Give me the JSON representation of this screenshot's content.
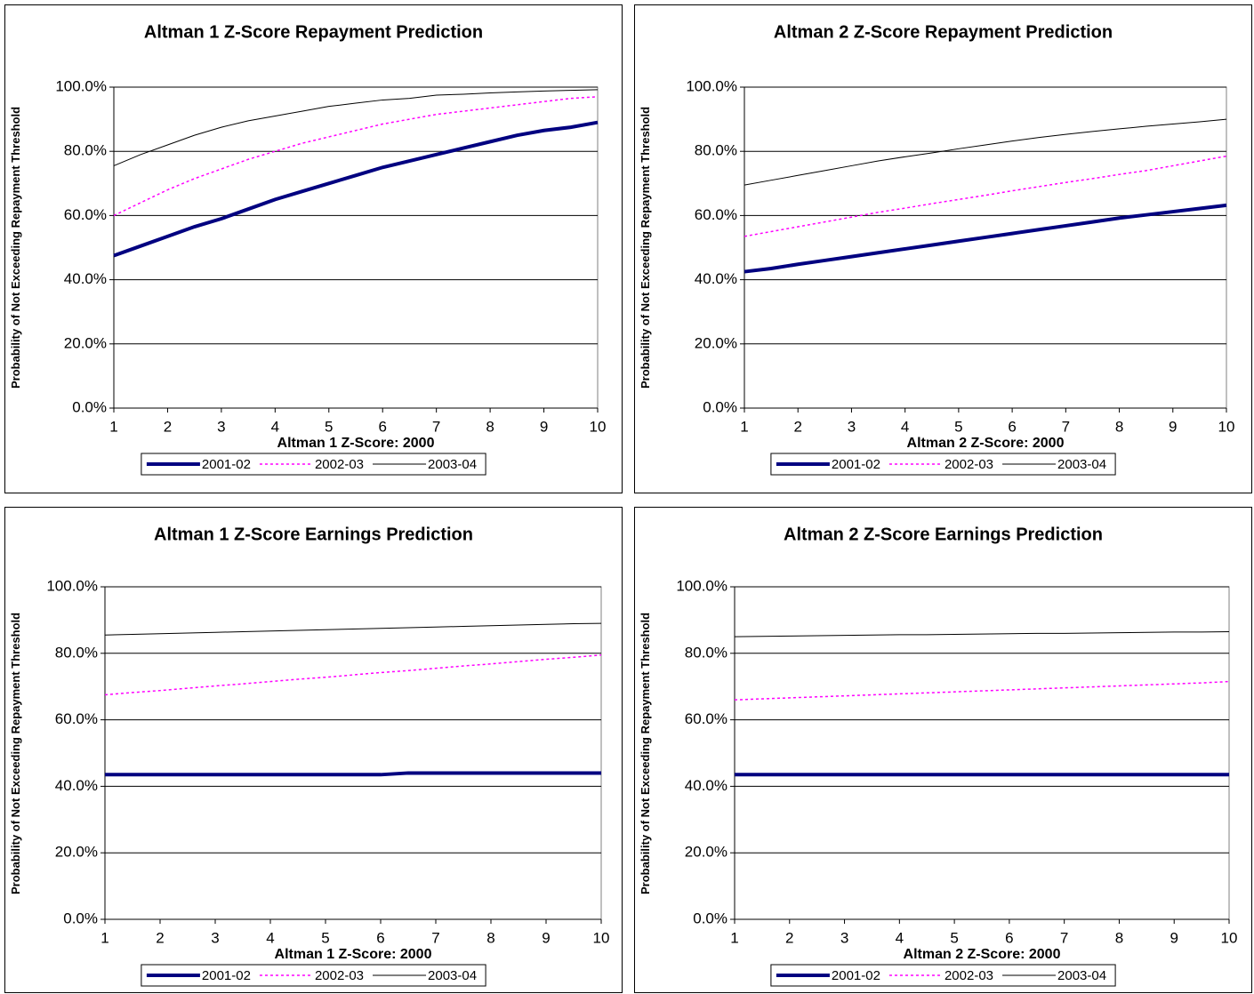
{
  "chart_data": [
    {
      "type": "line",
      "title": "Altman 1 Z-Score Repayment Prediction",
      "x_label": "Altman 1 Z-Score: 2000",
      "y_label": "Probability of Not Exceeding Repayment Threshold",
      "x": [
        1,
        1.5,
        2,
        2.5,
        3,
        3.5,
        4,
        4.5,
        5,
        5.5,
        6,
        6.5,
        7,
        7.5,
        8,
        8.5,
        9,
        9.5,
        10
      ],
      "xlim": [
        1,
        10
      ],
      "xticks": [
        1,
        2,
        3,
        4,
        5,
        6,
        7,
        8,
        9,
        10
      ],
      "ylim": [
        0,
        100
      ],
      "yticks": [
        {
          "value": 0,
          "label": "0.0%"
        },
        {
          "value": 20,
          "label": "20.0%"
        },
        {
          "value": 40,
          "label": "40.0%"
        },
        {
          "value": 60,
          "label": "60.0%"
        },
        {
          "value": 80,
          "label": "80.0%"
        },
        {
          "value": 100,
          "label": "100.0%"
        }
      ],
      "grid": true,
      "series": [
        {
          "name": "2001-02",
          "color": "#000080",
          "line_width": 4,
          "dash": "solid",
          "values": [
            47.5,
            50.5,
            53.5,
            56.5,
            59,
            62,
            65,
            67.5,
            70,
            72.5,
            75,
            77,
            79,
            81,
            83,
            85,
            86.5,
            87.5,
            89
          ]
        },
        {
          "name": "2002-03",
          "color": "#ff00ff",
          "line_width": 1.5,
          "dash": "dotted",
          "values": [
            60,
            64,
            68,
            71.5,
            74.5,
            77.5,
            80,
            82.5,
            84.5,
            86.5,
            88.5,
            90,
            91.5,
            92.5,
            93.5,
            94.5,
            95.5,
            96.5,
            97
          ]
        },
        {
          "name": "2003-04",
          "color": "#000000",
          "line_width": 1,
          "dash": "solid",
          "values": [
            75.5,
            79,
            82,
            85,
            87.5,
            89.5,
            91,
            92.5,
            94,
            95,
            96,
            96.5,
            97.5,
            97.8,
            98.2,
            98.5,
            98.8,
            99,
            99.2
          ]
        }
      ]
    },
    {
      "type": "line",
      "title": "Altman 2 Z-Score Repayment Prediction",
      "x_label": "Altman 2 Z-Score: 2000",
      "y_label": "Probability of Not Exceeding Repayment Threshold",
      "x": [
        1,
        1.5,
        2,
        2.5,
        3,
        3.5,
        4,
        4.5,
        5,
        5.5,
        6,
        6.5,
        7,
        7.5,
        8,
        8.5,
        9,
        9.5,
        10
      ],
      "xlim": [
        1,
        10
      ],
      "xticks": [
        1,
        2,
        3,
        4,
        5,
        6,
        7,
        8,
        9,
        10
      ],
      "ylim": [
        0,
        100
      ],
      "yticks": [
        {
          "value": 0,
          "label": "0.0%"
        },
        {
          "value": 20,
          "label": "20.0%"
        },
        {
          "value": 40,
          "label": "40.0%"
        },
        {
          "value": 60,
          "label": "60.0%"
        },
        {
          "value": 80,
          "label": "80.0%"
        },
        {
          "value": 100,
          "label": "100.0%"
        }
      ],
      "grid": true,
      "series": [
        {
          "name": "2001-02",
          "color": "#000080",
          "line_width": 4,
          "dash": "solid",
          "values": [
            42.5,
            43.5,
            44.8,
            46,
            47.2,
            48.4,
            49.6,
            50.8,
            52,
            53.2,
            54.4,
            55.6,
            56.8,
            58,
            59.2,
            60.2,
            61.2,
            62.2,
            63.2
          ]
        },
        {
          "name": "2002-03",
          "color": "#ff00ff",
          "line_width": 1.5,
          "dash": "dotted",
          "values": [
            53.5,
            55,
            56.5,
            58,
            59.5,
            61,
            62.3,
            63.7,
            65,
            66.3,
            67.7,
            69,
            70.3,
            71.5,
            72.8,
            74,
            75.5,
            77,
            78.5
          ]
        },
        {
          "name": "2003-04",
          "color": "#000000",
          "line_width": 1,
          "dash": "solid",
          "values": [
            69.5,
            71,
            72.5,
            74,
            75.5,
            77,
            78.3,
            79.5,
            80.8,
            82,
            83.2,
            84.3,
            85.3,
            86.2,
            87,
            87.8,
            88.5,
            89.2,
            90
          ]
        }
      ]
    },
    {
      "type": "line",
      "title": "Altman 1 Z-Score Earnings Prediction",
      "x_label": "Altman 1 Z-Score: 2000",
      "y_label": "Probability of Not Exceeding Repayment Threshold",
      "x": [
        1,
        1.5,
        2,
        2.5,
        3,
        3.5,
        4,
        4.5,
        5,
        5.5,
        6,
        6.5,
        7,
        7.5,
        8,
        8.5,
        9,
        9.5,
        10
      ],
      "xlim": [
        1,
        10
      ],
      "xticks": [
        1,
        2,
        3,
        4,
        5,
        6,
        7,
        8,
        9,
        10
      ],
      "ylim": [
        0,
        100
      ],
      "yticks": [
        {
          "value": 0,
          "label": "0.0%"
        },
        {
          "value": 20,
          "label": "20.0%"
        },
        {
          "value": 40,
          "label": "40.0%"
        },
        {
          "value": 60,
          "label": "60.0%"
        },
        {
          "value": 80,
          "label": "80.0%"
        },
        {
          "value": 100,
          "label": "100.0%"
        }
      ],
      "grid": true,
      "series": [
        {
          "name": "2001-02",
          "color": "#000080",
          "line_width": 4,
          "dash": "solid",
          "values": [
            43.5,
            43.5,
            43.5,
            43.5,
            43.5,
            43.5,
            43.5,
            43.5,
            43.5,
            43.5,
            43.5,
            44,
            44,
            44,
            44,
            44,
            44,
            44,
            44
          ]
        },
        {
          "name": "2002-03",
          "color": "#ff00ff",
          "line_width": 1.5,
          "dash": "dotted",
          "values": [
            67.5,
            68.2,
            68.8,
            69.5,
            70.2,
            70.8,
            71.5,
            72.2,
            72.8,
            73.5,
            74.2,
            74.8,
            75.5,
            76.2,
            76.8,
            77.5,
            78.2,
            78.8,
            79.5
          ]
        },
        {
          "name": "2003-04",
          "color": "#000000",
          "line_width": 1,
          "dash": "solid",
          "values": [
            85.5,
            85.7,
            85.9,
            86.1,
            86.3,
            86.5,
            86.7,
            86.9,
            87.1,
            87.3,
            87.5,
            87.7,
            87.9,
            88.1,
            88.3,
            88.5,
            88.7,
            88.9,
            89
          ]
        }
      ]
    },
    {
      "type": "line",
      "title": "Altman 2 Z-Score Earnings Prediction",
      "x_label": "Altman 2 Z-Score: 2000",
      "y_label": "Probability of Not Exceeding Repayment Threshold",
      "x": [
        1,
        1.5,
        2,
        2.5,
        3,
        3.5,
        4,
        4.5,
        5,
        5.5,
        6,
        6.5,
        7,
        7.5,
        8,
        8.5,
        9,
        9.5,
        10
      ],
      "xlim": [
        1,
        10
      ],
      "xticks": [
        1,
        2,
        3,
        4,
        5,
        6,
        7,
        8,
        9,
        10
      ],
      "ylim": [
        0,
        100
      ],
      "yticks": [
        {
          "value": 0,
          "label": "0.0%"
        },
        {
          "value": 20,
          "label": "20.0%"
        },
        {
          "value": 40,
          "label": "40.0%"
        },
        {
          "value": 60,
          "label": "60.0%"
        },
        {
          "value": 80,
          "label": "80.0%"
        },
        {
          "value": 100,
          "label": "100.0%"
        }
      ],
      "grid": true,
      "series": [
        {
          "name": "2001-02",
          "color": "#000080",
          "line_width": 4,
          "dash": "solid",
          "values": [
            43.5,
            43.5,
            43.5,
            43.5,
            43.5,
            43.5,
            43.5,
            43.5,
            43.5,
            43.5,
            43.5,
            43.5,
            43.5,
            43.5,
            43.5,
            43.5,
            43.5,
            43.5,
            43.5
          ]
        },
        {
          "name": "2002-03",
          "color": "#ff00ff",
          "line_width": 1.5,
          "dash": "dotted",
          "values": [
            66,
            66.3,
            66.6,
            66.9,
            67.2,
            67.5,
            67.8,
            68.1,
            68.4,
            68.7,
            69,
            69.3,
            69.6,
            69.9,
            70.2,
            70.5,
            70.8,
            71.1,
            71.5
          ]
        },
        {
          "name": "2003-04",
          "color": "#000000",
          "line_width": 1,
          "dash": "solid",
          "values": [
            85,
            85.1,
            85.2,
            85.3,
            85.4,
            85.5,
            85.6,
            85.6,
            85.7,
            85.8,
            85.9,
            86,
            86,
            86.1,
            86.2,
            86.3,
            86.4,
            86.4,
            86.5
          ]
        }
      ]
    }
  ]
}
